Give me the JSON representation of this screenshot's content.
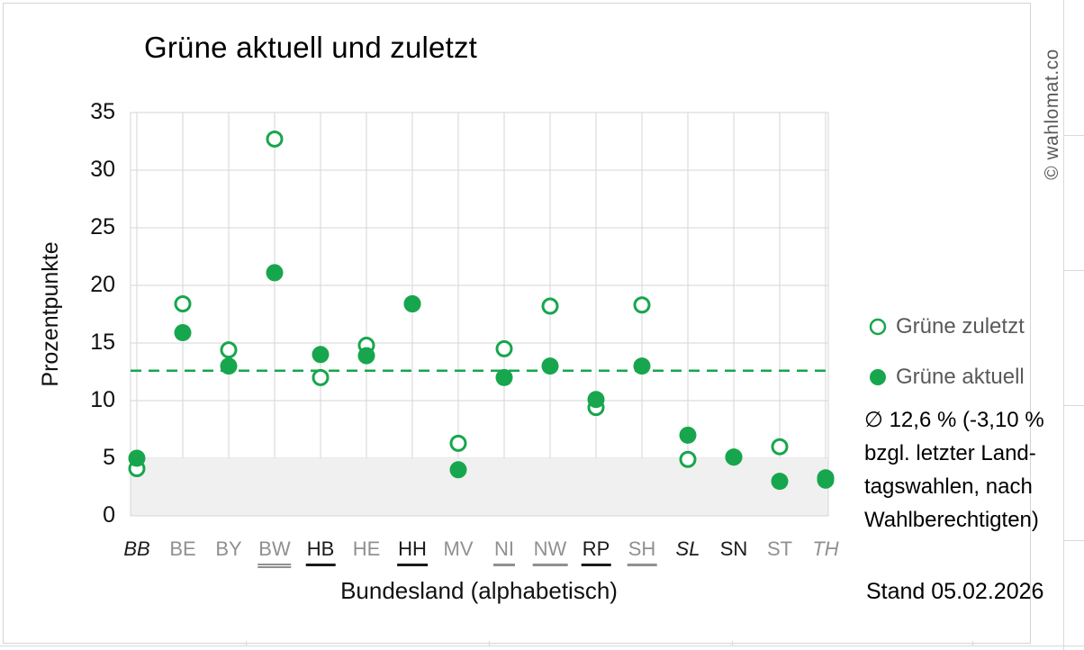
{
  "title": "Grüne aktuell und zuletzt",
  "watermark": "© wahlomat.co",
  "x_axis_title": "Bundesland (alphabetisch)",
  "y_axis_title": "Prozentpunkte",
  "stand": "Stand 05.02.2026",
  "legend": {
    "zuletzt_label": "Grüne zuletzt",
    "aktuell_label": "Grüne aktuell"
  },
  "annotation": {
    "text": "∅ 12,6 % (-3,10 %\nbzgl. letzter Land-\ntagswahlen, nach\nWahlberechtigten)"
  },
  "chart_data": {
    "type": "scatter",
    "title": "Grüne aktuell und zuletzt",
    "xlabel": "Bundesland (alphabetisch)",
    "ylabel": "Prozentpunkte",
    "ylim": [
      0,
      35
    ],
    "ytick_step": 5,
    "grid": true,
    "legend_position": "right",
    "threshold_band": {
      "from": 0,
      "to": 5
    },
    "mean_line": {
      "value": 12.6,
      "style": "dashed",
      "label": "∅ 12,6 % (-3,10 % bzgl. letzter Landtagswahlen, nach Wahlberechtigten)"
    },
    "categories": [
      {
        "code": "BB",
        "color": "black",
        "italic": true,
        "underline": "none"
      },
      {
        "code": "BE",
        "color": "gray",
        "italic": false,
        "underline": "none"
      },
      {
        "code": "BY",
        "color": "gray",
        "italic": false,
        "underline": "none"
      },
      {
        "code": "BW",
        "color": "gray",
        "italic": false,
        "underline": "double"
      },
      {
        "code": "HB",
        "color": "black",
        "italic": false,
        "underline": "single"
      },
      {
        "code": "HE",
        "color": "gray",
        "italic": false,
        "underline": "none"
      },
      {
        "code": "HH",
        "color": "black",
        "italic": false,
        "underline": "single"
      },
      {
        "code": "MV",
        "color": "gray",
        "italic": false,
        "underline": "none"
      },
      {
        "code": "NI",
        "color": "gray",
        "italic": false,
        "underline": "single"
      },
      {
        "code": "NW",
        "color": "gray",
        "italic": false,
        "underline": "single"
      },
      {
        "code": "RP",
        "color": "black",
        "italic": false,
        "underline": "single"
      },
      {
        "code": "SH",
        "color": "gray",
        "italic": false,
        "underline": "single"
      },
      {
        "code": "SL",
        "color": "black",
        "italic": true,
        "underline": "none"
      },
      {
        "code": "SN",
        "color": "black",
        "italic": false,
        "underline": "none"
      },
      {
        "code": "ST",
        "color": "gray",
        "italic": false,
        "underline": "none"
      },
      {
        "code": "TH",
        "color": "gray",
        "italic": true,
        "underline": "none"
      }
    ],
    "series": [
      {
        "name": "Grüne zuletzt",
        "marker": "open-circle",
        "values": [
          4.1,
          18.4,
          14.4,
          32.7,
          12.0,
          14.8,
          18.4,
          6.3,
          14.5,
          18.2,
          9.4,
          18.3,
          4.9,
          5.1,
          6.0,
          3.3
        ]
      },
      {
        "name": "Grüne aktuell",
        "marker": "filled-circle",
        "values": [
          5.0,
          15.9,
          13.0,
          21.1,
          14.0,
          13.9,
          18.4,
          4.0,
          12.0,
          13.0,
          10.1,
          13.0,
          7.0,
          5.1,
          3.0,
          3.1
        ]
      }
    ],
    "colors": {
      "green": "#17A64D",
      "grid": "#D6D6D6",
      "band": "#F0F0F0",
      "label_gray": "#909090",
      "label_black": "#1A1A1A",
      "legend_text": "#595959"
    }
  }
}
